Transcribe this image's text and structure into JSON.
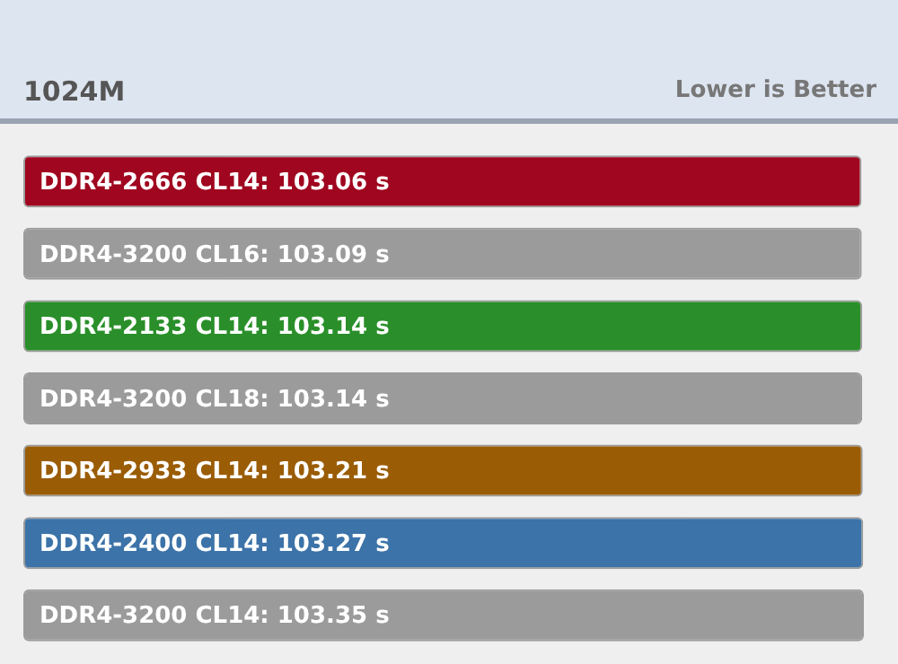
{
  "chart_data": {
    "type": "bar",
    "orientation": "horizontal",
    "subtitle": "1024M",
    "annotations": [
      "Lower is Better"
    ],
    "categories": [
      "DDR4-2666 CL14",
      "DDR4-3200 CL16",
      "DDR4-2133 CL14",
      "DDR4-3200 CL18",
      "DDR4-2933 CL14",
      "DDR4-2400 CL14",
      "DDR4-3200 CL14"
    ],
    "values": [
      103.06,
      103.09,
      103.14,
      103.14,
      103.21,
      103.27,
      103.35
    ],
    "value_labels": [
      ": 103.06 s",
      ": 103.09 s",
      ": 103.14 s",
      ": 103.14 s",
      ": 103.21 s",
      ": 103.27 s",
      ": 103.35 s"
    ],
    "colors": [
      "#a0061f",
      "#9b9b9b",
      "#2a8f2a",
      "#9b9b9b",
      "#9a5c05",
      "#3c73a8",
      "#9b9b9b"
    ],
    "tick_labels": false,
    "legend": false
  }
}
